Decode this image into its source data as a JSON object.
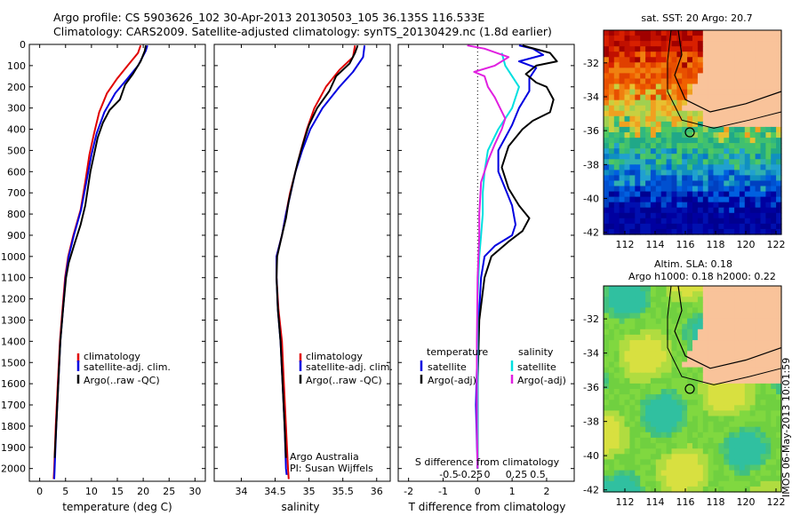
{
  "header": {
    "line1": "Argo profile: CS 5903626_102 30-Apr-2013 20130503_105 36.135S 116.533E",
    "line2": "Climatology: CARS2009. Satellite-adjusted climatology: synTS_20130429.nc (1.8d earlier)"
  },
  "footer_stamp": "IMOS 06-May-2013 10:01:59",
  "colors": {
    "climatology": "#e00000",
    "satellite": "#0000e0",
    "argo": "#000000",
    "sat_salinity": "#00e0e0",
    "argo_salinity": "#e020e0",
    "land": "#f9c39a"
  },
  "chart_data": [
    {
      "type": "line",
      "xlabel": "temperature (deg C)",
      "ylabel": "",
      "xlim": [
        -2,
        32
      ],
      "ylim": [
        2060,
        0
      ],
      "xticks": [
        0,
        5,
        10,
        15,
        20,
        25,
        30
      ],
      "yticks": [
        0,
        100,
        200,
        300,
        400,
        500,
        600,
        700,
        800,
        900,
        1000,
        1100,
        1200,
        1300,
        1400,
        1500,
        1600,
        1700,
        1800,
        1900,
        2000
      ],
      "legend": [
        "climatology",
        "satellite-adj. clim.",
        "Argo(..raw -QC)"
      ],
      "series": [
        {
          "name": "climatology",
          "color": "#e00000",
          "points": [
            [
              19.5,
              5
            ],
            [
              19,
              40
            ],
            [
              17,
              100
            ],
            [
              15,
              160
            ],
            [
              13,
              230
            ],
            [
              11.5,
              320
            ],
            [
              10.5,
              420
            ],
            [
              9.6,
              520
            ],
            [
              8.8,
              650
            ],
            [
              7.9,
              780
            ],
            [
              6.5,
              900
            ],
            [
              5.5,
              1000
            ],
            [
              4.9,
              1100
            ],
            [
              4.4,
              1250
            ],
            [
              3.9,
              1400
            ],
            [
              3.5,
              1600
            ],
            [
              3.1,
              1800
            ],
            [
              2.8,
              2000
            ],
            [
              2.7,
              2050
            ]
          ]
        },
        {
          "name": "satellite-adj. clim.",
          "color": "#0000e0",
          "points": [
            [
              20.8,
              5
            ],
            [
              20.5,
              30
            ],
            [
              19,
              100
            ],
            [
              17,
              160
            ],
            [
              14.6,
              230
            ],
            [
              12.5,
              320
            ],
            [
              11,
              420
            ],
            [
              10,
              520
            ],
            [
              9,
              650
            ],
            [
              8,
              780
            ],
            [
              6.6,
              900
            ],
            [
              5.6,
              1000
            ],
            [
              5,
              1100
            ],
            [
              4.5,
              1250
            ],
            [
              4,
              1400
            ],
            [
              3.6,
              1600
            ],
            [
              3.2,
              1800
            ],
            [
              2.9,
              2000
            ],
            [
              2.8,
              2050
            ]
          ]
        },
        {
          "name": "Argo(..raw -QC)",
          "color": "#000000",
          "points": [
            [
              20.5,
              5
            ],
            [
              20.3,
              30
            ],
            [
              19.5,
              80
            ],
            [
              18,
              140
            ],
            [
              16.5,
              190
            ],
            [
              15.5,
              260
            ],
            [
              13.5,
              310
            ],
            [
              12.2,
              370
            ],
            [
              11.2,
              440
            ],
            [
              10.5,
              520
            ],
            [
              9.8,
              600
            ],
            [
              9.3,
              680
            ],
            [
              8.8,
              760
            ],
            [
              7.9,
              850
            ],
            [
              6.6,
              950
            ],
            [
              5.6,
              1030
            ],
            [
              5.1,
              1100
            ],
            [
              4.5,
              1250
            ],
            [
              4,
              1400
            ],
            [
              3.6,
              1600
            ],
            [
              3.2,
              1800
            ],
            [
              2.9,
              1950
            ]
          ]
        }
      ]
    },
    {
      "type": "line",
      "xlabel": "salinity",
      "ylabel": "",
      "xlim": [
        33.6,
        36.2
      ],
      "ylim": [
        2060,
        0
      ],
      "xticks": [
        34,
        34.5,
        35,
        35.5,
        36
      ],
      "legend": [
        "climatology",
        "satellite-adj. clim.",
        "Argo(..raw -QC)"
      ],
      "annotations": [
        "Argo Australia",
        "PI: Susan Wijffels"
      ],
      "series": [
        {
          "name": "climatology",
          "color": "#e00000",
          "points": [
            [
              35.68,
              5
            ],
            [
              35.65,
              60
            ],
            [
              35.45,
              120
            ],
            [
              35.25,
              200
            ],
            [
              35.08,
              300
            ],
            [
              34.97,
              400
            ],
            [
              34.88,
              500
            ],
            [
              34.8,
              600
            ],
            [
              34.72,
              700
            ],
            [
              34.66,
              800
            ],
            [
              34.6,
              900
            ],
            [
              34.52,
              1000
            ],
            [
              34.52,
              1100
            ],
            [
              34.55,
              1250
            ],
            [
              34.6,
              1400
            ],
            [
              34.63,
              1600
            ],
            [
              34.66,
              1800
            ],
            [
              34.69,
              2000
            ],
            [
              34.7,
              2050
            ]
          ]
        },
        {
          "name": "satellite-adj. clim.",
          "color": "#0000e0",
          "points": [
            [
              35.82,
              5
            ],
            [
              35.8,
              60
            ],
            [
              35.65,
              130
            ],
            [
              35.45,
              200
            ],
            [
              35.2,
              300
            ],
            [
              35.02,
              400
            ],
            [
              34.9,
              500
            ],
            [
              34.8,
              600
            ],
            [
              34.73,
              700
            ],
            [
              34.66,
              800
            ],
            [
              34.6,
              900
            ],
            [
              34.52,
              1000
            ],
            [
              34.52,
              1100
            ],
            [
              34.54,
              1250
            ],
            [
              34.58,
              1400
            ],
            [
              34.61,
              1600
            ],
            [
              34.64,
              1800
            ],
            [
              34.66,
              2000
            ],
            [
              34.67,
              2030
            ]
          ]
        },
        {
          "name": "Argo(..raw -QC)",
          "color": "#000000",
          "points": [
            [
              35.72,
              5
            ],
            [
              35.68,
              40
            ],
            [
              35.6,
              90
            ],
            [
              35.4,
              150
            ],
            [
              35.3,
              220
            ],
            [
              35.12,
              300
            ],
            [
              35.0,
              380
            ],
            [
              34.92,
              460
            ],
            [
              34.83,
              560
            ],
            [
              34.77,
              640
            ],
            [
              34.7,
              740
            ],
            [
              34.66,
              820
            ],
            [
              34.6,
              900
            ],
            [
              34.53,
              1000
            ],
            [
              34.52,
              1100
            ],
            [
              34.54,
              1250
            ],
            [
              34.58,
              1400
            ],
            [
              34.61,
              1600
            ],
            [
              34.64,
              1800
            ],
            [
              34.66,
              1950
            ]
          ]
        }
      ]
    },
    {
      "type": "line",
      "xlabel": "T difference from climatology",
      "xlabel2": "S difference from climatology",
      "ylabel": "",
      "xlim": [
        -2.3,
        2.8
      ],
      "ylim": [
        2060,
        0
      ],
      "xticks": [
        -2,
        -1,
        0,
        1,
        2
      ],
      "xticks_s": [
        -0.5,
        -0.25,
        0,
        0.25,
        0.5
      ],
      "legend_titles": [
        "temperature",
        "salinity"
      ],
      "legend": [
        "satellite",
        "Argo(-adj)",
        "satellite",
        "Argo(-adj)"
      ],
      "series": [
        {
          "name": "satellite",
          "color": "#0000e0",
          "points": [
            [
              1.2,
              5
            ],
            [
              1.6,
              20
            ],
            [
              1.9,
              50
            ],
            [
              1.2,
              80
            ],
            [
              1.7,
              110
            ],
            [
              1.5,
              160
            ],
            [
              1.5,
              220
            ],
            [
              1.2,
              300
            ],
            [
              1,
              380
            ],
            [
              0.8,
              440
            ],
            [
              0.6,
              500
            ],
            [
              0.6,
              600
            ],
            [
              0.8,
              680
            ],
            [
              1,
              760
            ],
            [
              1.1,
              850
            ],
            [
              1,
              900
            ],
            [
              0.5,
              950
            ],
            [
              0.2,
              1000
            ],
            [
              0.1,
              1100
            ],
            [
              0,
              1400
            ],
            [
              -0.05,
              1700
            ],
            [
              0,
              2000
            ]
          ]
        },
        {
          "name": "Argo(-adj)",
          "color": "#000000",
          "points": [
            [
              1.3,
              5
            ],
            [
              2.1,
              40
            ],
            [
              2.3,
              80
            ],
            [
              1.7,
              100
            ],
            [
              1.4,
              140
            ],
            [
              1.7,
              180
            ],
            [
              2.0,
              200
            ],
            [
              2.2,
              260
            ],
            [
              2.1,
              320
            ],
            [
              1.6,
              360
            ],
            [
              1.3,
              400
            ],
            [
              0.9,
              480
            ],
            [
              0.7,
              580
            ],
            [
              0.9,
              680
            ],
            [
              1.2,
              760
            ],
            [
              1.5,
              820
            ],
            [
              1.3,
              880
            ],
            [
              0.9,
              930
            ],
            [
              0.4,
              1000
            ],
            [
              0.2,
              1100
            ],
            [
              0.05,
              1300
            ],
            [
              0,
              1600
            ],
            [
              0,
              2000
            ]
          ]
        },
        {
          "name": "satellite",
          "color": "#00e0e0",
          "points": [
            [
              0.7,
              40
            ],
            [
              0.8,
              100
            ],
            [
              1.2,
              200
            ],
            [
              1.0,
              300
            ],
            [
              0.6,
              400
            ],
            [
              0.3,
              500
            ],
            [
              0.2,
              600
            ],
            [
              0.15,
              700
            ],
            [
              0.15,
              800
            ],
            [
              0.1,
              900
            ],
            [
              0.05,
              1000
            ],
            [
              0,
              1200
            ],
            [
              0,
              1500
            ],
            [
              0,
              2000
            ]
          ]
        },
        {
          "name": "Argo(-adj)",
          "color": "#e020e0",
          "points": [
            [
              -0.3,
              5
            ],
            [
              0.2,
              20
            ],
            [
              0.9,
              60
            ],
            [
              0.5,
              100
            ],
            [
              -0.1,
              130
            ],
            [
              0.2,
              150
            ],
            [
              0.3,
              200
            ],
            [
              0.5,
              250
            ],
            [
              0.8,
              350
            ],
            [
              0.7,
              400
            ],
            [
              0.5,
              470
            ],
            [
              0.3,
              550
            ],
            [
              0.1,
              650
            ],
            [
              0.05,
              800
            ],
            [
              0.05,
              900
            ],
            [
              0,
              1100
            ],
            [
              -0.02,
              1400
            ],
            [
              -0.02,
              1800
            ],
            [
              0,
              2000
            ]
          ]
        }
      ]
    }
  ],
  "maps": [
    {
      "title": "sat. SST: 20 Argo: 20.7",
      "xticks": [
        "112",
        "114",
        "116",
        "118",
        "120",
        "122"
      ],
      "yticks": [
        "-32",
        "-34",
        "-36",
        "-38",
        "-40",
        "-42"
      ]
    },
    {
      "title": "Altim. SLA: 0.18",
      "title2": "Argo h1000: 0.18 h2000: 0.22",
      "xticks": [
        "112",
        "114",
        "116",
        "118",
        "120",
        "122"
      ],
      "yticks": [
        "-32",
        "-34",
        "-36",
        "-38",
        "-40",
        "-42"
      ]
    }
  ]
}
